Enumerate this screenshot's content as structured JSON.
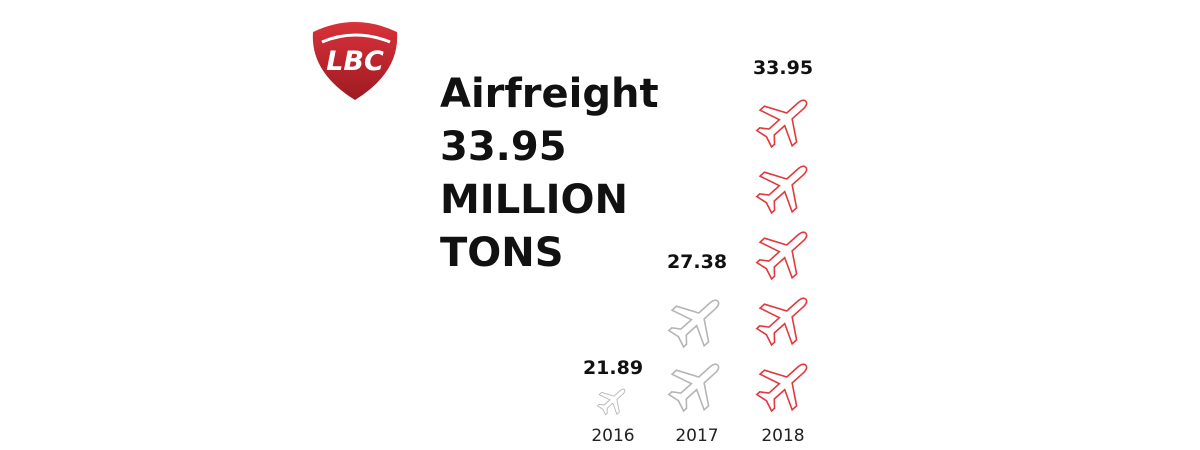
{
  "logo": "LBC",
  "chart_data": {
    "type": "pictograph",
    "title": [
      "Airfreight",
      "33.95",
      "MILLION",
      "TONS"
    ],
    "categories": [
      "2016",
      "2017",
      "2018"
    ],
    "values": [
      21.89,
      27.38,
      33.95
    ],
    "colors": [
      "#b5b5b5",
      "#b5b5b5",
      "#e0393e"
    ]
  }
}
